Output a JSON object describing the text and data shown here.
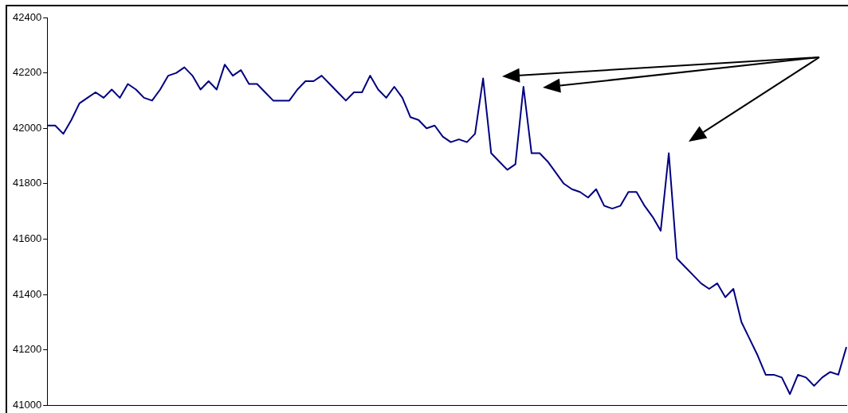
{
  "chart_data": {
    "type": "line",
    "categories": [
      null,
      null,
      null,
      null,
      null,
      null,
      null,
      null,
      null,
      null,
      null,
      null,
      null,
      null,
      null,
      null,
      null,
      null,
      null,
      null,
      null,
      null,
      null,
      null,
      null,
      null,
      null,
      null,
      null,
      null,
      null,
      null,
      null,
      null,
      null,
      null,
      null,
      null,
      null,
      null,
      null,
      null,
      null,
      null,
      null,
      null,
      null,
      null,
      null,
      null,
      null,
      null,
      null,
      null,
      null,
      null,
      null,
      null,
      null,
      null,
      null,
      null,
      null,
      null,
      null,
      null,
      null,
      null,
      null,
      null,
      null,
      null,
      null,
      null,
      null,
      null,
      null,
      null,
      null,
      null,
      null,
      null,
      null,
      null,
      null,
      null,
      null,
      null,
      null,
      null,
      null,
      null,
      null,
      null,
      null,
      null,
      null,
      null,
      null,
      null
    ],
    "series": [
      {
        "color": "#000080",
        "values": [
          42010,
          42010,
          41980,
          42030,
          42090,
          42110,
          42130,
          42110,
          42140,
          42110,
          42160,
          42140,
          42110,
          42100,
          42140,
          42190,
          42200,
          42220,
          42190,
          42140,
          42170,
          42140,
          42230,
          42190,
          42210,
          42160,
          42160,
          42130,
          42100,
          42100,
          42100,
          42140,
          42170,
          42170,
          42190,
          42160,
          42130,
          42100,
          42130,
          42130,
          42190,
          42140,
          42110,
          42150,
          42110,
          42040,
          42030,
          42000,
          42010,
          41970,
          41950,
          41960,
          41950,
          41980,
          42180,
          41910,
          41880,
          41850,
          41870,
          42150,
          41910,
          41910,
          41880,
          41840,
          41800,
          41780,
          41770,
          41750,
          41780,
          41720,
          41710,
          41720,
          41770,
          41770,
          41720,
          41680,
          41630,
          41910,
          41530,
          41500,
          41470,
          41440,
          41420,
          41440,
          41390,
          41420,
          41300,
          41240,
          41180,
          41110,
          41110,
          41100,
          41040,
          41110,
          41100,
          41070,
          41100,
          41120,
          41110,
          41210
        ]
      }
    ],
    "ylim": [
      41000,
      42400
    ],
    "yticks": [
      41000,
      41200,
      41400,
      41600,
      41800,
      42000,
      42200,
      42400
    ],
    "grid": false,
    "legend": false,
    "marker": "none",
    "line_style": "solid",
    "tick_labels": "y"
  }
}
